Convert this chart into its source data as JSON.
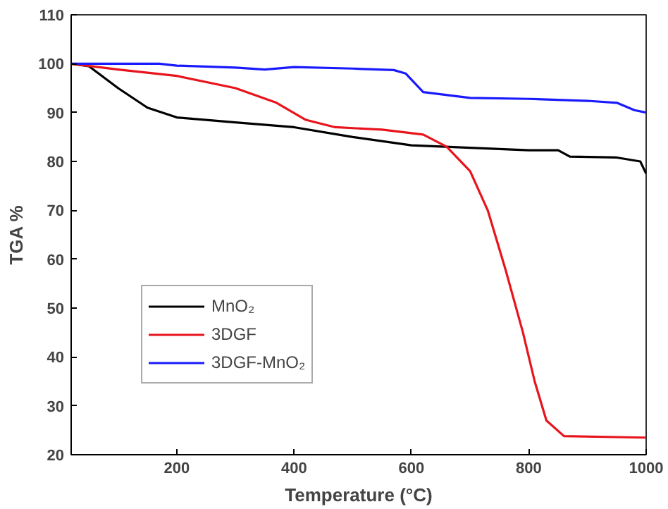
{
  "chart_data": {
    "type": "line",
    "xlabel": "Temperature (°C)",
    "ylabel": "TGA %",
    "xlim": [
      20,
      1000
    ],
    "ylim": [
      20,
      110
    ],
    "xticks": [
      200,
      400,
      600,
      800,
      1000
    ],
    "yticks": [
      20,
      30,
      40,
      50,
      60,
      70,
      80,
      90,
      100,
      110
    ],
    "grid": false,
    "legend": "bottom left",
    "marker": "none",
    "line_style": "solid",
    "series": [
      {
        "name": "MnO₂",
        "color": "#000000",
        "x": [
          20,
          50,
          100,
          150,
          200,
          300,
          400,
          500,
          600,
          700,
          800,
          850,
          870,
          950,
          990,
          1000
        ],
        "values": [
          100,
          99.5,
          95,
          91,
          89,
          88,
          87,
          85,
          83.3,
          82.8,
          82.3,
          82.3,
          81,
          80.8,
          80,
          77.5
        ]
      },
      {
        "name": "3DGF",
        "color": "#e8141c",
        "x": [
          20,
          100,
          200,
          300,
          370,
          420,
          470,
          550,
          620,
          660,
          700,
          730,
          760,
          790,
          810,
          830,
          860,
          1000
        ],
        "values": [
          100,
          98.8,
          97.5,
          95,
          92,
          88.5,
          87,
          86.5,
          85.5,
          83,
          78,
          70,
          58,
          45,
          35,
          27,
          23.8,
          23.5
        ]
      },
      {
        "name": "3DGF-MnO₂",
        "color": "#1a1aff",
        "x": [
          20,
          170,
          200,
          300,
          350,
          400,
          500,
          570,
          590,
          620,
          700,
          800,
          900,
          950,
          980,
          1000
        ],
        "values": [
          100,
          100,
          99.6,
          99.2,
          98.8,
          99.3,
          99,
          98.7,
          98,
          94.2,
          93,
          92.8,
          92.4,
          92,
          90.5,
          90
        ]
      }
    ]
  }
}
